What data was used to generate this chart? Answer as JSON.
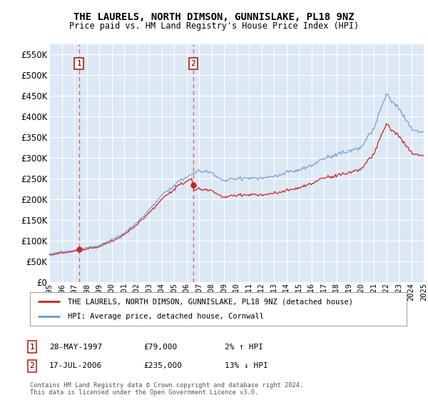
{
  "title": "THE LAURELS, NORTH DIMSON, GUNNISLAKE, PL18 9NZ",
  "subtitle": "Price paid vs. HM Land Registry's House Price Index (HPI)",
  "legend_line1": "THE LAURELS, NORTH DIMSON, GUNNISLAKE, PL18 9NZ (detached house)",
  "legend_line2": "HPI: Average price, detached house, Cornwall",
  "sale1_date": "28-MAY-1997",
  "sale1_price": "£79,000",
  "sale1_hpi": "2% ↑ HPI",
  "sale2_date": "17-JUL-2006",
  "sale2_price": "£235,000",
  "sale2_hpi": "13% ↓ HPI",
  "footer": "Contains HM Land Registry data © Crown copyright and database right 2024.\nThis data is licensed under the Open Government Licence v3.0.",
  "ylim": [
    0,
    575000
  ],
  "yticks": [
    0,
    50000,
    100000,
    150000,
    200000,
    250000,
    300000,
    350000,
    400000,
    450000,
    500000,
    550000
  ],
  "plot_bg_color": "#dce8f5",
  "hpi_color": "#6699cc",
  "price_color": "#cc2222",
  "grid_color": "#ffffff",
  "sale1_x": 1997.38,
  "sale1_y": 79000,
  "sale2_x": 2006.54,
  "sale2_y": 235000,
  "x_start": 1995,
  "x_end": 2025,
  "xtick_years": [
    1995,
    1996,
    1997,
    1998,
    1999,
    2000,
    2001,
    2002,
    2003,
    2004,
    2005,
    2006,
    2007,
    2008,
    2009,
    2010,
    2011,
    2012,
    2013,
    2014,
    2015,
    2016,
    2017,
    2018,
    2019,
    2020,
    2021,
    2022,
    2023,
    2024,
    2025
  ]
}
